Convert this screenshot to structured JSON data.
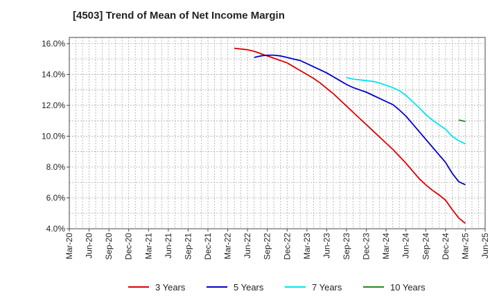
{
  "chart_data": {
    "type": "line",
    "title": "[4503]  Trend of Mean of Net Income Margin",
    "x_labels": [
      "Mar-20",
      "Jun-20",
      "Sep-20",
      "Dec-20",
      "Mar-21",
      "Jun-21",
      "Sep-21",
      "Dec-21",
      "Mar-22",
      "Jun-22",
      "Sep-22",
      "Dec-22",
      "Mar-23",
      "Jun-23",
      "Sep-23",
      "Dec-23",
      "Mar-24",
      "Jun-24",
      "Sep-24",
      "Dec-24",
      "Mar-25",
      "Jun-25"
    ],
    "y_ticks": [
      "4.0%",
      "6.0%",
      "8.0%",
      "10.0%",
      "12.0%",
      "14.0%",
      "16.0%"
    ],
    "ylim": [
      4.0,
      16.4
    ],
    "grid": true,
    "legend_position": "bottom",
    "colors": {
      "3y": "#dd0000",
      "5y": "#0000cc",
      "7y": "#00e5ee",
      "10y": "#228822"
    },
    "series": [
      {
        "name": "3 Years",
        "color": "#dd0000",
        "values": [
          15.7,
          15.65,
          15.6,
          15.5,
          15.35,
          15.2,
          15.05,
          14.9,
          14.75,
          14.5,
          14.25,
          14.0,
          13.75,
          13.45,
          13.1,
          12.75,
          12.35,
          11.95,
          11.55,
          11.15,
          10.75,
          10.35,
          9.95,
          9.55,
          9.15,
          8.7,
          8.25,
          7.75,
          7.25,
          6.85,
          6.5,
          6.2,
          5.85,
          5.25,
          4.7,
          4.35
        ]
      },
      {
        "name": "5 Years",
        "color": "#0000cc",
        "values": [
          15.1,
          15.2,
          15.25,
          15.25,
          15.2,
          15.1,
          15.0,
          14.9,
          14.7,
          14.5,
          14.3,
          14.1,
          13.85,
          13.6,
          13.35,
          13.15,
          13.0,
          12.85,
          12.65,
          12.45,
          12.25,
          12.05,
          11.7,
          11.3,
          10.8,
          10.3,
          9.8,
          9.3,
          8.8,
          8.3,
          7.6,
          7.05,
          6.85
        ]
      },
      {
        "name": "7 Years",
        "color": "#00e5ee",
        "values": [
          13.8,
          13.7,
          13.65,
          13.6,
          13.55,
          13.45,
          13.3,
          13.15,
          12.95,
          12.65,
          12.25,
          11.85,
          11.4,
          11.05,
          10.75,
          10.45,
          10.0,
          9.7,
          9.5
        ]
      },
      {
        "name": "10 Years",
        "color": "#228822",
        "values": [
          11.05,
          10.95
        ]
      }
    ]
  }
}
